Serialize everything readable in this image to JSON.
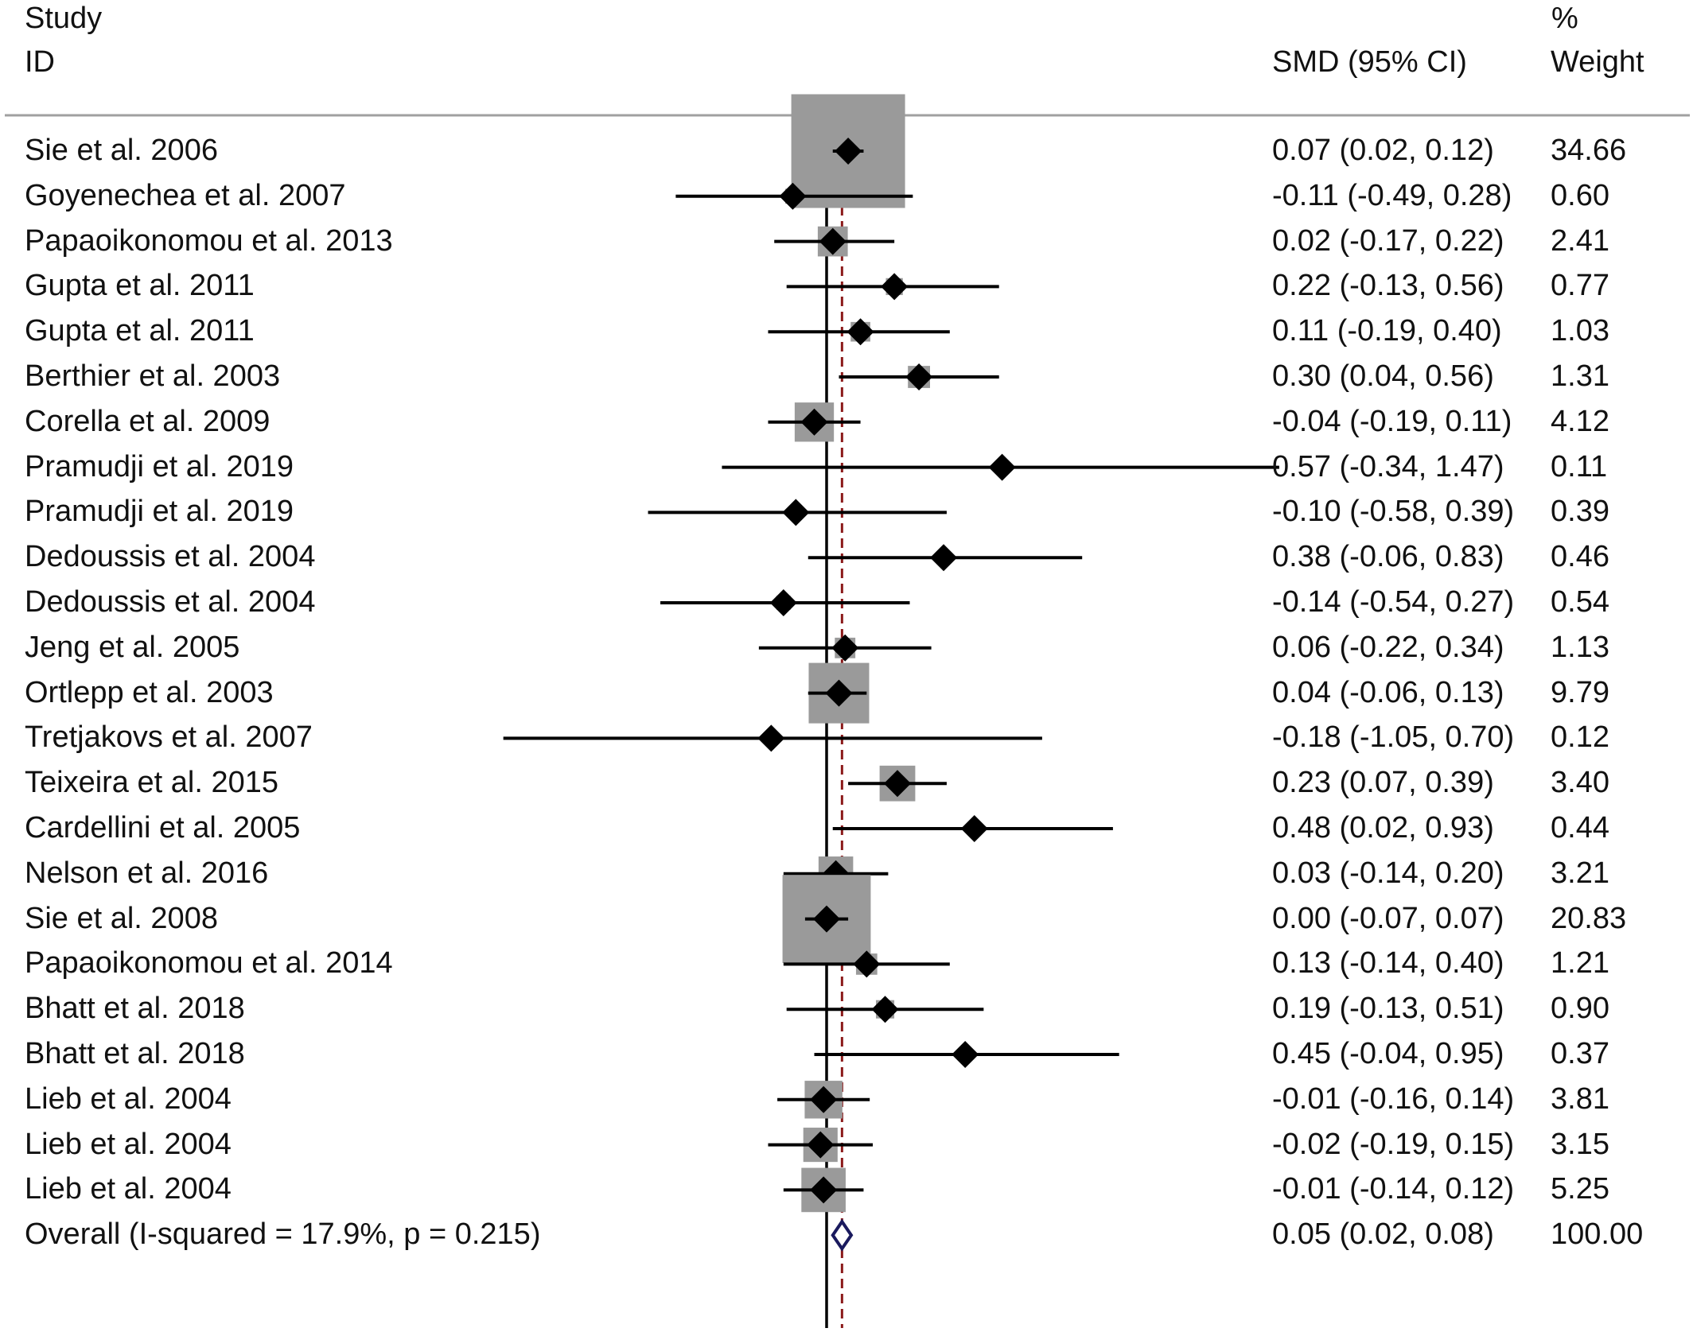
{
  "header": {
    "study_line1": "Study",
    "study_line2": "ID",
    "est_line": "SMD (95% CI)",
    "weight_line1": "%",
    "weight_line2": "Weight"
  },
  "colors": {
    "box": "#9a9a9a",
    "point": "#000000",
    "overall_diamond": "#1a1a5e",
    "ref_line": "#8b1a1a",
    "separator": "#a0a0a0"
  },
  "chart_data": {
    "type": "forest",
    "x_axis": {
      "null_line": 0,
      "pooled_line": 0.05,
      "grid": false
    },
    "studies": [
      {
        "label": "Sie et al. 2006",
        "smd": 0.07,
        "lo": 0.02,
        "hi": 0.12,
        "ci_text": "0.07 (0.02, 0.12)",
        "weight": 34.66,
        "weight_text": "34.66"
      },
      {
        "label": "Goyenechea et al. 2007",
        "smd": -0.11,
        "lo": -0.49,
        "hi": 0.28,
        "ci_text": "-0.11 (-0.49, 0.28)",
        "weight": 0.6,
        "weight_text": "0.60"
      },
      {
        "label": "Papaoikonomou et al. 2013",
        "smd": 0.02,
        "lo": -0.17,
        "hi": 0.22,
        "ci_text": "0.02 (-0.17, 0.22)",
        "weight": 2.41,
        "weight_text": "2.41"
      },
      {
        "label": "Gupta et al. 2011",
        "smd": 0.22,
        "lo": -0.13,
        "hi": 0.56,
        "ci_text": "0.22 (-0.13, 0.56)",
        "weight": 0.77,
        "weight_text": "0.77"
      },
      {
        "label": "Gupta et al. 2011",
        "smd": 0.11,
        "lo": -0.19,
        "hi": 0.4,
        "ci_text": "0.11 (-0.19, 0.40)",
        "weight": 1.03,
        "weight_text": "1.03"
      },
      {
        "label": "Berthier et al. 2003",
        "smd": 0.3,
        "lo": 0.04,
        "hi": 0.56,
        "ci_text": "0.30 (0.04, 0.56)",
        "weight": 1.31,
        "weight_text": "1.31"
      },
      {
        "label": "Corella et al. 2009",
        "smd": -0.04,
        "lo": -0.19,
        "hi": 0.11,
        "ci_text": "-0.04 (-0.19, 0.11)",
        "weight": 4.12,
        "weight_text": "4.12"
      },
      {
        "label": "Pramudji et al. 2019",
        "smd": 0.57,
        "lo": -0.34,
        "hi": 1.47,
        "ci_text": "0.57 (-0.34, 1.47)",
        "weight": 0.11,
        "weight_text": "0.11"
      },
      {
        "label": "Pramudji et al. 2019",
        "smd": -0.1,
        "lo": -0.58,
        "hi": 0.39,
        "ci_text": "-0.10 (-0.58, 0.39)",
        "weight": 0.39,
        "weight_text": "0.39"
      },
      {
        "label": "Dedoussis et al. 2004",
        "smd": 0.38,
        "lo": -0.06,
        "hi": 0.83,
        "ci_text": "0.38 (-0.06, 0.83)",
        "weight": 0.46,
        "weight_text": "0.46"
      },
      {
        "label": "Dedoussis et al. 2004",
        "smd": -0.14,
        "lo": -0.54,
        "hi": 0.27,
        "ci_text": "-0.14 (-0.54, 0.27)",
        "weight": 0.54,
        "weight_text": "0.54"
      },
      {
        "label": "Jeng et al. 2005",
        "smd": 0.06,
        "lo": -0.22,
        "hi": 0.34,
        "ci_text": "0.06 (-0.22, 0.34)",
        "weight": 1.13,
        "weight_text": "1.13"
      },
      {
        "label": "Ortlepp et al. 2003",
        "smd": 0.04,
        "lo": -0.06,
        "hi": 0.13,
        "ci_text": "0.04 (-0.06, 0.13)",
        "weight": 9.79,
        "weight_text": "9.79"
      },
      {
        "label": "Tretjakovs et al. 2007",
        "smd": -0.18,
        "lo": -1.05,
        "hi": 0.7,
        "ci_text": "-0.18 (-1.05, 0.70)",
        "weight": 0.12,
        "weight_text": "0.12"
      },
      {
        "label": "Teixeira et al. 2015",
        "smd": 0.23,
        "lo": 0.07,
        "hi": 0.39,
        "ci_text": "0.23 (0.07, 0.39)",
        "weight": 3.4,
        "weight_text": "3.40"
      },
      {
        "label": "Cardellini et al. 2005",
        "smd": 0.48,
        "lo": 0.02,
        "hi": 0.93,
        "ci_text": "0.48 (0.02, 0.93)",
        "weight": 0.44,
        "weight_text": "0.44"
      },
      {
        "label": "Nelson et al. 2016",
        "smd": 0.03,
        "lo": -0.14,
        "hi": 0.2,
        "ci_text": "0.03 (-0.14, 0.20)",
        "weight": 3.21,
        "weight_text": "3.21"
      },
      {
        "label": "Sie et al. 2008",
        "smd": 0.0,
        "lo": -0.07,
        "hi": 0.07,
        "ci_text": "0.00 (-0.07, 0.07)",
        "weight": 20.83,
        "weight_text": "20.83"
      },
      {
        "label": "Papaoikonomou et al. 2014",
        "smd": 0.13,
        "lo": -0.14,
        "hi": 0.4,
        "ci_text": "0.13 (-0.14, 0.40)",
        "weight": 1.21,
        "weight_text": "1.21"
      },
      {
        "label": "Bhatt et al. 2018",
        "smd": 0.19,
        "lo": -0.13,
        "hi": 0.51,
        "ci_text": "0.19 (-0.13, 0.51)",
        "weight": 0.9,
        "weight_text": "0.90"
      },
      {
        "label": "Bhatt et al. 2018",
        "smd": 0.45,
        "lo": -0.04,
        "hi": 0.95,
        "ci_text": "0.45 (-0.04, 0.95)",
        "weight": 0.37,
        "weight_text": "0.37"
      },
      {
        "label": "Lieb et al. 2004",
        "smd": -0.01,
        "lo": -0.16,
        "hi": 0.14,
        "ci_text": "-0.01 (-0.16, 0.14)",
        "weight": 3.81,
        "weight_text": "3.81"
      },
      {
        "label": "Lieb et al. 2004",
        "smd": -0.02,
        "lo": -0.19,
        "hi": 0.15,
        "ci_text": "-0.02 (-0.19, 0.15)",
        "weight": 3.15,
        "weight_text": "3.15"
      },
      {
        "label": "Lieb et al. 2004",
        "smd": -0.01,
        "lo": -0.14,
        "hi": 0.12,
        "ci_text": "-0.01 (-0.14, 0.12)",
        "weight": 5.25,
        "weight_text": "5.25"
      }
    ],
    "overall": {
      "label": "Overall  (I-squared = 17.9%, p = 0.215)",
      "smd": 0.05,
      "lo": 0.02,
      "hi": 0.08,
      "ci_text": "0.05 (0.02, 0.08)",
      "weight_text": "100.00"
    }
  }
}
